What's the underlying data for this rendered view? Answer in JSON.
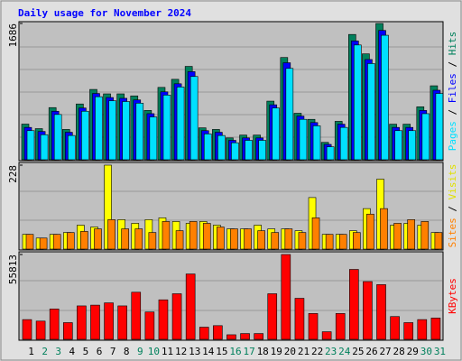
{
  "chart_data": [
    {
      "type": "bar",
      "title": "Daily usage for November 2024",
      "categories": [
        "1",
        "2",
        "3",
        "4",
        "5",
        "6",
        "7",
        "8",
        "9",
        "10",
        "11",
        "12",
        "13",
        "14",
        "15",
        "16",
        "17",
        "18",
        "19",
        "20",
        "21",
        "22",
        "23",
        "24",
        "25",
        "26",
        "27",
        "28",
        "29",
        "30",
        "31"
      ],
      "label_colors": [
        "#000000",
        "#00805c",
        "#00805c",
        "#000000",
        "#000000",
        "#000000",
        "#000000",
        "#000000",
        "#00805c",
        "#00805c",
        "#000000",
        "#000000",
        "#000000",
        "#000000",
        "#000000",
        "#00805c",
        "#00805c",
        "#000000",
        "#000000",
        "#000000",
        "#000000",
        "#000000",
        "#00805c",
        "#00805c",
        "#000000",
        "#000000",
        "#000000",
        "#000000",
        "#000000",
        "#00805c",
        "#00805c"
      ],
      "ylim": [
        0,
        1686
      ],
      "yticks": [
        1686
      ],
      "series": [
        {
          "name": "Hits",
          "color": "#00805c",
          "values": [
            441,
            385,
            645,
            375,
            690,
            870,
            815,
            815,
            790,
            610,
            895,
            995,
            1155,
            395,
            375,
            270,
            305,
            305,
            725,
            1265,
            575,
            500,
            215,
            475,
            1550,
            1310,
            1686,
            440,
            440,
            655,
            915
          ]
        },
        {
          "name": "Files",
          "color": "#0000ff",
          "values": [
            400,
            350,
            600,
            340,
            640,
            820,
            770,
            760,
            740,
            570,
            840,
            940,
            1090,
            360,
            340,
            240,
            270,
            270,
            680,
            1200,
            540,
            460,
            190,
            440,
            1470,
            1240,
            1600,
            400,
            400,
            610,
            860
          ]
        },
        {
          "name": "Pages",
          "color": "#00e0ff",
          "values": [
            360,
            310,
            560,
            300,
            600,
            780,
            730,
            720,
            700,
            530,
            800,
            900,
            1030,
            320,
            300,
            210,
            240,
            240,
            640,
            1130,
            500,
            420,
            160,
            400,
            1420,
            1190,
            1540,
            360,
            360,
            570,
            820
          ]
        }
      ]
    },
    {
      "type": "bar",
      "ylim": [
        0,
        228
      ],
      "yticks": [
        228
      ],
      "series": [
        {
          "name": "Visits",
          "color": "#ffff00",
          "values": [
            40,
            30,
            40,
            45,
            65,
            60,
            228,
            80,
            70,
            80,
            85,
            75,
            70,
            75,
            65,
            55,
            55,
            65,
            55,
            55,
            50,
            140,
            40,
            40,
            50,
            110,
            190,
            65,
            70,
            65,
            45
          ]
        },
        {
          "name": "Sites",
          "color": "#ff8000",
          "values": [
            40,
            30,
            40,
            45,
            48,
            55,
            80,
            55,
            55,
            45,
            75,
            50,
            75,
            70,
            60,
            55,
            55,
            50,
            45,
            55,
            45,
            85,
            40,
            40,
            45,
            95,
            110,
            70,
            80,
            75,
            45
          ]
        }
      ]
    },
    {
      "type": "bar",
      "ylim": [
        0,
        55813
      ],
      "yticks": [
        55813
      ],
      "series": [
        {
          "name": "KBytes",
          "color": "#ff0000",
          "values": [
            13000,
            12000,
            20000,
            11000,
            22000,
            22500,
            24000,
            22000,
            31000,
            18000,
            26000,
            30000,
            43000,
            8000,
            9000,
            3000,
            3800,
            3800,
            30000,
            55813,
            27000,
            17000,
            5000,
            17000,
            46000,
            38000,
            36000,
            15000,
            11000,
            13000,
            14000
          ]
        }
      ]
    }
  ]
}
